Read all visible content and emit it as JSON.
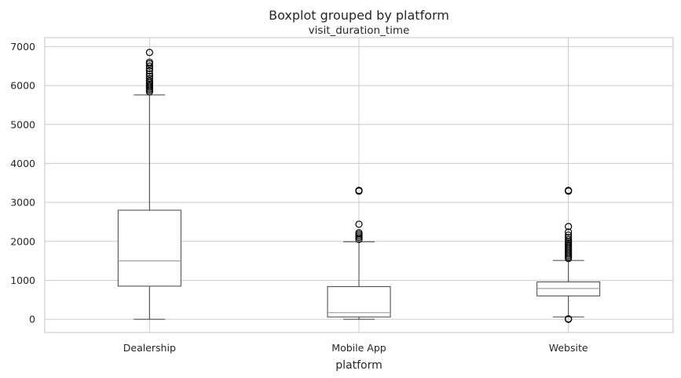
{
  "chart_data": {
    "type": "box",
    "title": "Boxplot grouped by platform",
    "subtitle": "visit_duration_time",
    "xlabel": "platform",
    "ylabel": "",
    "ylim": [
      -340,
      7230
    ],
    "yticks": [
      0,
      1000,
      2000,
      3000,
      4000,
      5000,
      6000,
      7000
    ],
    "grid": true,
    "categories": [
      "Dealership",
      "Mobile App",
      "Website"
    ],
    "boxes": [
      {
        "name": "Dealership",
        "whisker_low": 0,
        "q1": 850,
        "median": 1500,
        "q3": 2800,
        "whisker_high": 5760,
        "outliers": [
          5840,
          5880,
          5920,
          5960,
          6000,
          6040,
          6080,
          6120,
          6180,
          6240,
          6300,
          6380,
          6440,
          6500,
          6560,
          6600,
          6850
        ]
      },
      {
        "name": "Mobile App",
        "whisker_low": 0,
        "q1": 60,
        "median": 170,
        "q3": 840,
        "whisker_high": 1990,
        "outliers": [
          2050,
          2100,
          2140,
          2180,
          2220,
          2440,
          3290,
          3300,
          3310
        ]
      },
      {
        "name": "Website",
        "whisker_low": 60,
        "q1": 600,
        "median": 790,
        "q3": 960,
        "whisker_high": 1510,
        "outliers": [
          0,
          10,
          1560,
          1600,
          1640,
          1680,
          1720,
          1760,
          1800,
          1840,
          1880,
          1920,
          1960,
          2000,
          2050,
          2100,
          2160,
          2240,
          2380,
          3290,
          3300,
          3310
        ]
      }
    ],
    "colors": {
      "grid": "#cccccc",
      "box": "#404040",
      "median": "#a0a0a0",
      "text": "#262626",
      "spine": "#cccccc"
    }
  }
}
